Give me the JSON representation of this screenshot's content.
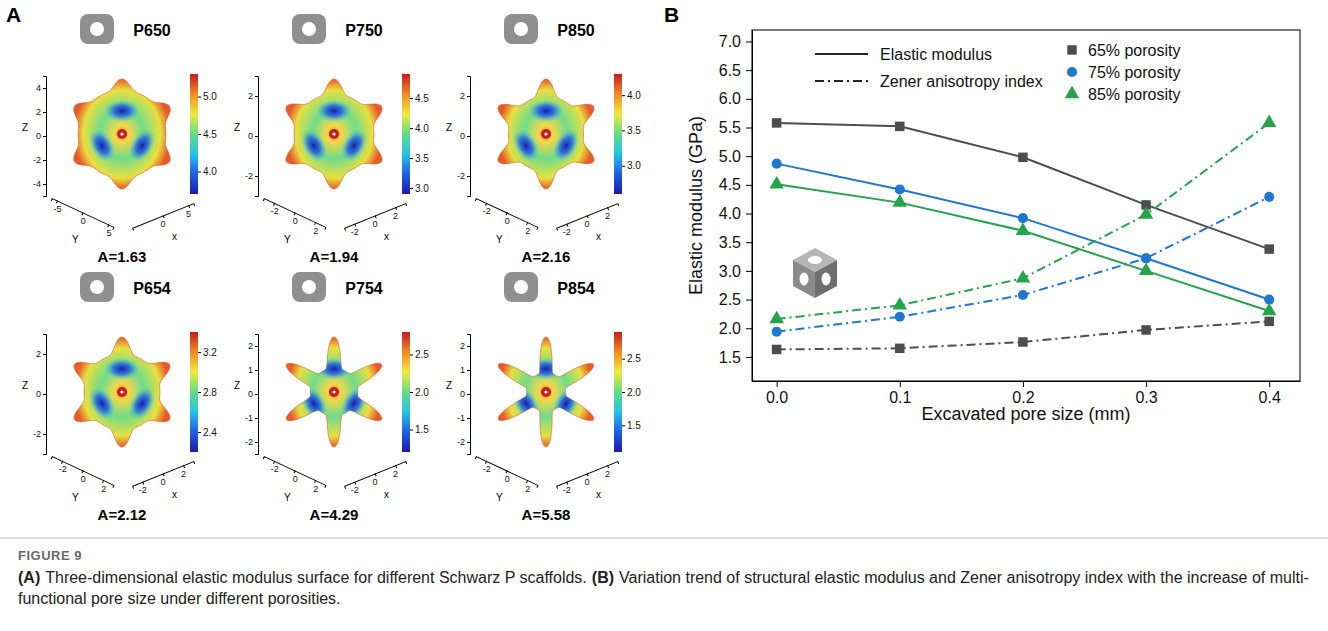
{
  "chart_data": [
    {
      "type": "surface",
      "title": "P650",
      "anisotropy": 1.63,
      "anisotropy_label": "A=1.63",
      "zlabel": "Z",
      "ylabel": "Y",
      "xlabel": "x",
      "zlim": [
        -5,
        5
      ],
      "zticks": [
        -4,
        -2,
        0,
        2,
        4
      ],
      "ylim": [
        -6,
        6
      ],
      "yticks": [
        -5,
        0,
        5
      ],
      "xlim": [
        -6,
        6
      ],
      "xticks": [
        0,
        5
      ],
      "colorbar": {
        "range": [
          3.7,
          5.3
        ],
        "ticks": [
          {
            "value": 4,
            "label": "4.0"
          },
          4.5,
          {
            "value": 5,
            "label": "5.0"
          }
        ]
      }
    },
    {
      "type": "surface",
      "title": "P750",
      "anisotropy": 1.94,
      "anisotropy_label": "A=1.94",
      "zlabel": "Z",
      "ylabel": "Y",
      "xlabel": "x",
      "zlim": [
        -3,
        3
      ],
      "zticks": [
        -2,
        0,
        2
      ],
      "ylim": [
        -3,
        3
      ],
      "yticks": [
        -2,
        0,
        2
      ],
      "xlim": [
        -3,
        3
      ],
      "xticks": [
        -2,
        0,
        2
      ],
      "colorbar": {
        "range": [
          2.9,
          4.9
        ],
        "ticks": [
          {
            "value": 3,
            "label": "3.0"
          },
          3.5,
          {
            "value": 4,
            "label": "4.0"
          },
          4.5
        ]
      }
    },
    {
      "type": "surface",
      "title": "P850",
      "anisotropy": 2.16,
      "anisotropy_label": "A=2.16",
      "zlabel": "Z",
      "ylabel": "Y",
      "xlabel": "x",
      "zlim": [
        -3,
        3
      ],
      "zticks": [
        -2,
        0,
        2
      ],
      "ylim": [
        -3,
        3
      ],
      "yticks": [
        -2,
        0,
        2
      ],
      "xlim": [
        -3,
        3
      ],
      "xticks": [
        -2,
        0,
        2
      ],
      "colorbar": {
        "range": [
          2.6,
          4.3
        ],
        "ticks": [
          {
            "value": 3,
            "label": "3.0"
          },
          3.5,
          {
            "value": 4,
            "label": "4.0"
          }
        ]
      }
    },
    {
      "type": "surface",
      "title": "P654",
      "anisotropy": 2.12,
      "anisotropy_label": "A=2.12",
      "zlabel": "Z",
      "ylabel": "Y",
      "xlabel": "x",
      "zlim": [
        -3,
        3
      ],
      "zticks": [
        -2,
        0,
        2
      ],
      "ylim": [
        -3,
        3
      ],
      "yticks": [
        -2,
        0,
        2
      ],
      "xlim": [
        -3,
        3
      ],
      "xticks": [
        -2,
        0,
        2
      ],
      "colorbar": {
        "range": [
          2.2,
          3.4
        ],
        "ticks": [
          2.4,
          2.8,
          3.2
        ]
      }
    },
    {
      "type": "surface",
      "title": "P754",
      "anisotropy": 4.29,
      "anisotropy_label": "A=4.29",
      "zlabel": "Z",
      "ylabel": "Y",
      "xlabel": "x",
      "zlim": [
        -2.5,
        2.5
      ],
      "zticks": [
        -2,
        -1,
        0,
        1,
        2
      ],
      "ylim": [
        -3,
        3
      ],
      "yticks": [
        -2,
        0,
        2
      ],
      "xlim": [
        -3,
        3
      ],
      "xticks": [
        -2,
        0,
        2
      ],
      "colorbar": {
        "range": [
          1.2,
          2.8
        ],
        "ticks": [
          1.5,
          {
            "value": 2,
            "label": "2.0"
          },
          2.5
        ]
      }
    },
    {
      "type": "surface",
      "title": "P854",
      "anisotropy": 5.58,
      "anisotropy_label": "A=5.58",
      "zlabel": "Z",
      "ylabel": "Y",
      "xlabel": "x",
      "zlim": [
        -2.5,
        2.5
      ],
      "zticks": [
        -2,
        -1,
        0,
        1,
        2
      ],
      "ylim": [
        -3,
        3
      ],
      "yticks": [
        -2,
        0,
        2
      ],
      "xlim": [
        -3,
        3
      ],
      "xticks": [
        -2,
        0,
        2
      ],
      "colorbar": {
        "range": [
          1.1,
          2.9
        ],
        "ticks": [
          1.5,
          {
            "value": 2,
            "label": "2.0"
          },
          2.5
        ]
      }
    },
    {
      "type": "line",
      "xlabel": "Excavated pore size (mm)",
      "ylabel": "Elastic modulus (GPa)",
      "x": [
        0,
        0.1,
        0.2,
        0.3,
        0.4
      ],
      "xlim": [
        -0.02,
        0.425
      ],
      "xticks": [
        {
          "value": 0,
          "label": "0.0"
        },
        0.1,
        0.2,
        0.3,
        0.4
      ],
      "ylim": [
        1.08,
        7.2
      ],
      "yticks": [
        1.5,
        {
          "value": 2,
          "label": "2.0"
        },
        2.5,
        {
          "value": 3,
          "label": "3.0"
        },
        3.5,
        {
          "value": 4,
          "label": "4.0"
        },
        4.5,
        {
          "value": 5,
          "label": "5.0"
        },
        5.5,
        {
          "value": 6,
          "label": "6.0"
        },
        6.5,
        {
          "value": 7,
          "label": "7.0"
        }
      ],
      "legend": "top",
      "series": [
        {
          "name": "65% porosity",
          "quantity": "Elastic modulus",
          "color": "#4d4d4d",
          "marker": "square",
          "line_style": "solid",
          "values": [
            5.58,
            5.52,
            4.98,
            4.15,
            3.38
          ]
        },
        {
          "name": "75% porosity",
          "quantity": "Elastic modulus",
          "color": "#1f77cf",
          "marker": "circle",
          "line_style": "solid",
          "values": [
            4.87,
            4.42,
            3.92,
            3.22,
            2.5
          ]
        },
        {
          "name": "85% porosity",
          "quantity": "Elastic modulus",
          "color": "#23a34a",
          "marker": "triangle",
          "line_style": "solid",
          "values": [
            4.51,
            4.19,
            3.7,
            3.0,
            2.3
          ]
        },
        {
          "name": "65% porosity",
          "quantity": "Zener anisotropy index",
          "color": "#4d4d4d",
          "marker": "square",
          "line_style": "dashdot",
          "values": [
            1.63,
            1.65,
            1.76,
            1.97,
            2.12
          ]
        },
        {
          "name": "75% porosity",
          "quantity": "Zener anisotropy index",
          "color": "#1f77cf",
          "marker": "circle",
          "line_style": "dashdot",
          "values": [
            1.94,
            2.2,
            2.58,
            3.22,
            4.29
          ]
        },
        {
          "name": "85% porosity",
          "quantity": "Zener anisotropy index",
          "color": "#23a34a",
          "marker": "triangle",
          "line_style": "dashdot",
          "values": [
            2.16,
            2.4,
            2.87,
            3.98,
            5.58
          ]
        }
      ]
    }
  ],
  "panel_labels": [
    "A",
    "B"
  ],
  "figure_label": "FIGURE 9",
  "caption": [
    {
      "letter": "(A)",
      "text": "Three-dimensional elastic modulus surface for different Schwarz P scaffolds."
    },
    {
      "letter": "(B)",
      "text": "Variation trend of structural elastic modulus and Zener anisotropy index with the increase of multi-functional pore size under different porosities."
    }
  ]
}
